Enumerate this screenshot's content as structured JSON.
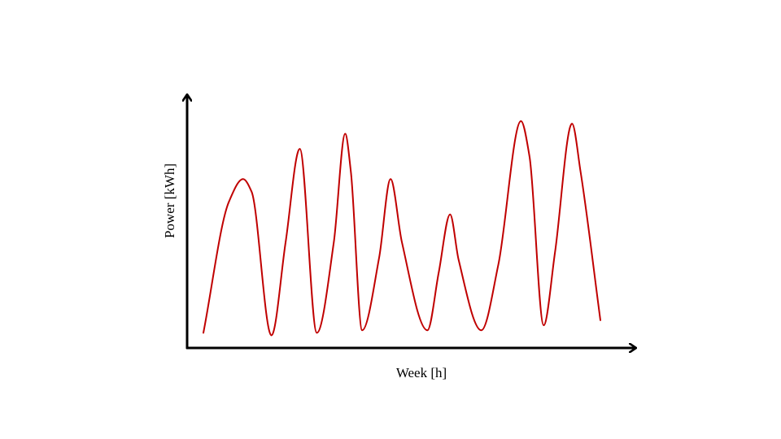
{
  "chart_data": {
    "type": "line",
    "title": "",
    "xlabel": "Week [h]",
    "ylabel": "Power [kWh]",
    "xlim": [
      0,
      168
    ],
    "ylim": [
      0,
      100
    ],
    "grid": false,
    "axis_ticks": false,
    "series": [
      {
        "color": "#c00000",
        "points": [
          [
            0,
            6
          ],
          [
            9,
            58
          ],
          [
            14,
            67
          ],
          [
            17,
            62
          ],
          [
            24,
            5
          ],
          [
            29,
            42
          ],
          [
            34,
            79
          ],
          [
            40,
            6
          ],
          [
            46,
            42
          ],
          [
            50,
            85
          ],
          [
            52,
            70
          ],
          [
            56,
            7
          ],
          [
            62,
            36
          ],
          [
            66,
            67
          ],
          [
            70,
            42
          ],
          [
            79,
            7
          ],
          [
            83,
            30
          ],
          [
            87,
            53
          ],
          [
            90,
            35
          ],
          [
            98,
            7
          ],
          [
            104,
            33
          ],
          [
            112,
            90
          ],
          [
            115,
            76
          ],
          [
            120,
            9
          ],
          [
            124,
            38
          ],
          [
            130,
            89
          ],
          [
            133,
            70
          ],
          [
            140,
            11
          ]
        ]
      }
    ]
  }
}
